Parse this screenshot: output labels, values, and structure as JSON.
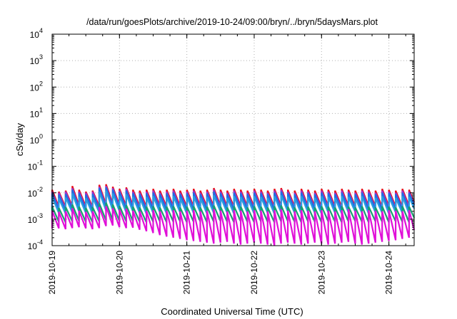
{
  "chart_data": {
    "type": "line",
    "title": "/data/run/goesPlots/archive/2019-10-24/09:00/bryn/../bryn/5daysMars.plot",
    "xlabel": "Coordinated Universal Time (UTC)",
    "ylabel": "cSv/day",
    "yscale": "log",
    "ylim": [
      0.0001,
      10000
    ],
    "xlim": [
      "2019-10-19T00:00",
      "2019-10-24T09:00"
    ],
    "grid": true,
    "legend": "none",
    "x_tick_labels": [
      "2019-10-19",
      "2019-10-20",
      "2019-10-21",
      "2019-10-22",
      "2019-10-23",
      "2019-10-24"
    ],
    "y_ticks": [
      {
        "base": "10",
        "exp": "-4",
        "value": 0.0001
      },
      {
        "base": "10",
        "exp": "-3",
        "value": 0.001
      },
      {
        "base": "10",
        "exp": "-2",
        "value": 0.01
      },
      {
        "base": "10",
        "exp": "-1",
        "value": 0.1
      },
      {
        "base": "10",
        "exp": "0",
        "value": 1
      },
      {
        "base": "10",
        "exp": "1",
        "value": 10
      },
      {
        "base": "10",
        "exp": "2",
        "value": 100
      },
      {
        "base": "10",
        "exp": "3",
        "value": 1000
      },
      {
        "base": "10",
        "exp": "4",
        "value": 10000
      }
    ],
    "sawtooth_period_hours": 2.4,
    "series": [
      {
        "color": "#e8101a",
        "peaks": [
          0.013,
          0.011,
          0.012,
          0.018,
          0.013,
          0.011,
          0.012,
          0.02,
          0.021,
          0.017,
          0.014,
          0.016,
          0.013,
          0.012,
          0.013,
          0.014,
          0.012,
          0.013,
          0.014,
          0.012,
          0.013,
          0.014,
          0.012,
          0.013,
          0.015,
          0.013,
          0.012,
          0.014,
          0.013,
          0.012,
          0.014,
          0.013,
          0.012,
          0.014,
          0.015,
          0.013,
          0.012,
          0.014,
          0.013,
          0.012,
          0.014,
          0.013,
          0.012,
          0.014,
          0.013,
          0.012,
          0.014,
          0.013,
          0.012,
          0.014,
          0.013,
          0.012,
          0.014,
          0.013
        ],
        "troughs": [
          0.0029,
          0.0028,
          0.0031,
          0.0032,
          0.003,
          0.0029,
          0.0031,
          0.0036,
          0.0037,
          0.0034,
          0.0031,
          0.0033,
          0.003,
          0.0029,
          0.003,
          0.0031,
          0.0029,
          0.003,
          0.0031,
          0.0029,
          0.003,
          0.0031,
          0.0029,
          0.003,
          0.0032,
          0.003,
          0.0029,
          0.0031,
          0.003,
          0.0029,
          0.0031,
          0.003,
          0.0029,
          0.0031,
          0.0032,
          0.003,
          0.0029,
          0.0031,
          0.003,
          0.0029,
          0.0031,
          0.003,
          0.0029,
          0.0031,
          0.003,
          0.0029,
          0.0031,
          0.003,
          0.0029,
          0.0031,
          0.003,
          0.0029,
          0.0031,
          0.003
        ]
      },
      {
        "color": "#a030c8",
        "peaks": [
          0.011,
          0.01,
          0.011,
          0.015,
          0.011,
          0.01,
          0.011,
          0.017,
          0.018,
          0.015,
          0.012,
          0.014,
          0.011,
          0.01,
          0.011,
          0.012,
          0.01,
          0.011,
          0.012,
          0.01,
          0.011,
          0.012,
          0.01,
          0.011,
          0.013,
          0.011,
          0.01,
          0.012,
          0.011,
          0.01,
          0.012,
          0.011,
          0.01,
          0.012,
          0.013,
          0.011,
          0.01,
          0.012,
          0.011,
          0.01,
          0.012,
          0.011,
          0.01,
          0.012,
          0.011,
          0.01,
          0.012,
          0.011,
          0.01,
          0.012,
          0.011,
          0.01,
          0.012,
          0.011
        ],
        "troughs": [
          0.0025,
          0.0024,
          0.0027,
          0.0028,
          0.0026,
          0.0025,
          0.0027,
          0.0031,
          0.0032,
          0.0029,
          0.0027,
          0.0028,
          0.0026,
          0.0025,
          0.0026,
          0.0027,
          0.0025,
          0.0026,
          0.0027,
          0.0025,
          0.0026,
          0.0027,
          0.0025,
          0.0026,
          0.0028,
          0.0026,
          0.0025,
          0.0027,
          0.0026,
          0.0025,
          0.0027,
          0.0026,
          0.0025,
          0.0027,
          0.0028,
          0.0026,
          0.0025,
          0.0027,
          0.0026,
          0.0025,
          0.0027,
          0.0026,
          0.0025,
          0.0027,
          0.0026,
          0.0025,
          0.0027,
          0.0026,
          0.0025,
          0.0027,
          0.0026,
          0.0025,
          0.0027,
          0.0026
        ]
      },
      {
        "color": "#1f6fe0",
        "peaks": [
          0.0095,
          0.0085,
          0.009,
          0.013,
          0.0095,
          0.0085,
          0.009,
          0.015,
          0.016,
          0.013,
          0.0105,
          0.012,
          0.0095,
          0.0088,
          0.0095,
          0.01,
          0.0088,
          0.0095,
          0.01,
          0.0088,
          0.0095,
          0.01,
          0.0088,
          0.0095,
          0.011,
          0.0095,
          0.0088,
          0.01,
          0.0095,
          0.0088,
          0.01,
          0.0095,
          0.0088,
          0.01,
          0.011,
          0.0095,
          0.0088,
          0.01,
          0.0095,
          0.0088,
          0.01,
          0.0095,
          0.0088,
          0.01,
          0.0095,
          0.0088,
          0.01,
          0.0095,
          0.0088,
          0.01,
          0.0095,
          0.0088,
          0.01,
          0.0095
        ],
        "troughs": [
          0.0022,
          0.0021,
          0.0024,
          0.0025,
          0.0023,
          0.0022,
          0.0024,
          0.0027,
          0.0028,
          0.0026,
          0.0024,
          0.0025,
          0.0023,
          0.0022,
          0.0023,
          0.0024,
          0.0022,
          0.0023,
          0.0024,
          0.0022,
          0.0023,
          0.0024,
          0.0022,
          0.0023,
          0.0025,
          0.0023,
          0.0022,
          0.0024,
          0.0023,
          0.0022,
          0.0024,
          0.0023,
          0.0022,
          0.0024,
          0.0025,
          0.0023,
          0.0022,
          0.0024,
          0.0023,
          0.0022,
          0.0024,
          0.0023,
          0.0022,
          0.0024,
          0.0025,
          0.0023,
          0.0022,
          0.0024,
          0.0023,
          0.0022,
          0.0024,
          0.0023,
          0.0022,
          0.0024
        ]
      },
      {
        "color": "#2a9ee0",
        "peaks": [
          0.007,
          0.0062,
          0.0066,
          0.0095,
          0.007,
          0.0062,
          0.0066,
          0.011,
          0.012,
          0.0095,
          0.0078,
          0.0088,
          0.007,
          0.0064,
          0.007,
          0.0074,
          0.0064,
          0.007,
          0.0074,
          0.0064,
          0.007,
          0.0074,
          0.0064,
          0.007,
          0.008,
          0.007,
          0.0064,
          0.0074,
          0.007,
          0.0064,
          0.0074,
          0.007,
          0.0064,
          0.0074,
          0.008,
          0.007,
          0.0064,
          0.0074,
          0.007,
          0.0064,
          0.0074,
          0.007,
          0.0064,
          0.0074,
          0.007,
          0.0064,
          0.0074,
          0.007,
          0.0064,
          0.0074,
          0.007,
          0.0064,
          0.0074,
          0.007
        ],
        "troughs": [
          0.0017,
          0.0016,
          0.0018,
          0.0019,
          0.0017,
          0.0016,
          0.0018,
          0.0021,
          0.0022,
          0.002,
          0.0018,
          0.0019,
          0.0017,
          0.0016,
          0.0017,
          0.0018,
          0.0016,
          0.0017,
          0.0018,
          0.0016,
          0.0017,
          0.0018,
          0.0016,
          0.0017,
          0.0019,
          0.0017,
          0.0016,
          0.0018,
          0.0017,
          0.0016,
          0.0018,
          0.0017,
          0.0016,
          0.0018,
          0.0019,
          0.0017,
          0.0016,
          0.0018,
          0.0017,
          0.0016,
          0.0018,
          0.0017,
          0.0016,
          0.0018,
          0.0019,
          0.0017,
          0.0016,
          0.0018,
          0.0017,
          0.0016,
          0.0018,
          0.0017,
          0.0016,
          0.0018
        ]
      },
      {
        "color": "#18a070",
        "peaks": [
          0.003,
          0.0027,
          0.0029,
          0.0036,
          0.003,
          0.0027,
          0.0029,
          0.004,
          0.0042,
          0.0036,
          0.0032,
          0.0034,
          0.003,
          0.0028,
          0.003,
          0.0031,
          0.0028,
          0.003,
          0.0031,
          0.0028,
          0.003,
          0.0031,
          0.0028,
          0.003,
          0.0033,
          0.003,
          0.0028,
          0.0031,
          0.003,
          0.0028,
          0.0031,
          0.003,
          0.0028,
          0.0031,
          0.0033,
          0.003,
          0.0028,
          0.0031,
          0.003,
          0.0028,
          0.0031,
          0.003,
          0.0028,
          0.0031,
          0.003,
          0.0028,
          0.0031,
          0.003,
          0.0028,
          0.0031,
          0.003,
          0.0028,
          0.0031,
          0.003
        ],
        "troughs": [
          0.0008,
          0.00075,
          0.00082,
          0.00085,
          0.0008,
          0.00076,
          0.00082,
          0.0009,
          0.00092,
          0.00086,
          0.00082,
          0.00084,
          0.0008,
          0.00076,
          0.0008,
          0.00082,
          0.00076,
          0.0008,
          0.00082,
          0.00076,
          0.0008,
          0.00082,
          0.00076,
          0.0008,
          0.00084,
          0.0008,
          0.00076,
          0.00082,
          0.0008,
          0.00076,
          0.00082,
          0.0008,
          0.00076,
          0.00082,
          0.00084,
          0.0008,
          0.00076,
          0.00082,
          0.0008,
          0.00076,
          0.00082,
          0.0008,
          0.00076,
          0.00082,
          0.00084,
          0.0008,
          0.00076,
          0.00082,
          0.0008,
          0.00076,
          0.00082,
          0.0008,
          0.00076,
          0.00082
        ]
      },
      {
        "color": "#e010d8",
        "peaks": [
          0.0021,
          0.0019,
          0.002,
          0.0026,
          0.0021,
          0.0019,
          0.002,
          0.0029,
          0.0031,
          0.0026,
          0.0023,
          0.0025,
          0.0021,
          0.002,
          0.0021,
          0.0022,
          0.002,
          0.0021,
          0.0022,
          0.002,
          0.0021,
          0.0022,
          0.002,
          0.0021,
          0.0024,
          0.0021,
          0.002,
          0.0022,
          0.0021,
          0.002,
          0.0022,
          0.0021,
          0.002,
          0.0022,
          0.0024,
          0.0021,
          0.002,
          0.0022,
          0.0021,
          0.002,
          0.0022,
          0.0021,
          0.002,
          0.0022,
          0.0024,
          0.0021,
          0.002,
          0.0022,
          0.0021,
          0.002,
          0.0022,
          0.0021,
          0.002,
          0.0022
        ],
        "troughs": [
          0.00045,
          0.00042,
          0.00046,
          0.0005,
          0.00045,
          0.00042,
          0.00046,
          0.00055,
          0.00058,
          0.0005,
          0.00046,
          0.00048,
          0.0004,
          0.00035,
          0.0003,
          0.00025,
          0.00022,
          0.0002,
          0.00018,
          0.00016,
          0.00015,
          0.00014,
          0.00013,
          0.00012,
          0.00013,
          0.00014,
          0.00012,
          0.00011,
          0.00012,
          0.00013,
          0.00012,
          0.00011,
          0.0001,
          0.00012,
          0.00013,
          0.00012,
          0.00011,
          0.00012,
          0.00013,
          0.00012,
          0.00011,
          0.00012,
          0.00013,
          0.00014,
          0.00012,
          0.00011,
          0.00012,
          0.00013,
          0.00014,
          0.00015,
          0.00016,
          0.00018,
          0.0002,
          0.00022
        ]
      }
    ]
  }
}
